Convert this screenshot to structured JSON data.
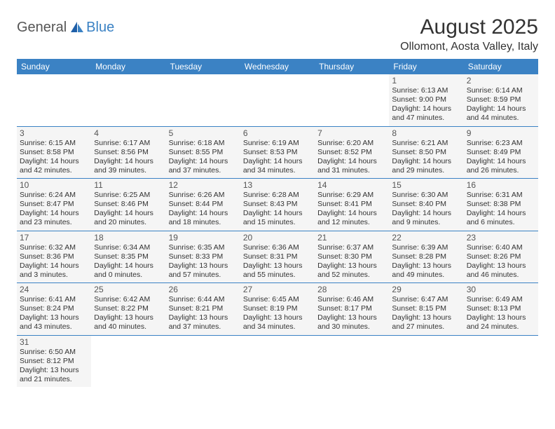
{
  "logo": {
    "text_general": "General",
    "text_blue": "Blue"
  },
  "title": {
    "month": "August 2025",
    "location": "Ollomont, Aosta Valley, Italy"
  },
  "colors": {
    "header_bg": "#3b82c4",
    "header_text": "#ffffff",
    "cell_bg": "#f5f5f5",
    "border": "#3b82c4",
    "text": "#333333"
  },
  "weekdays": [
    "Sunday",
    "Monday",
    "Tuesday",
    "Wednesday",
    "Thursday",
    "Friday",
    "Saturday"
  ],
  "weeks": [
    [
      null,
      null,
      null,
      null,
      null,
      {
        "day": "1",
        "sunrise": "Sunrise: 6:13 AM",
        "sunset": "Sunset: 9:00 PM",
        "daylight1": "Daylight: 14 hours",
        "daylight2": "and 47 minutes."
      },
      {
        "day": "2",
        "sunrise": "Sunrise: 6:14 AM",
        "sunset": "Sunset: 8:59 PM",
        "daylight1": "Daylight: 14 hours",
        "daylight2": "and 44 minutes."
      }
    ],
    [
      {
        "day": "3",
        "sunrise": "Sunrise: 6:15 AM",
        "sunset": "Sunset: 8:58 PM",
        "daylight1": "Daylight: 14 hours",
        "daylight2": "and 42 minutes."
      },
      {
        "day": "4",
        "sunrise": "Sunrise: 6:17 AM",
        "sunset": "Sunset: 8:56 PM",
        "daylight1": "Daylight: 14 hours",
        "daylight2": "and 39 minutes."
      },
      {
        "day": "5",
        "sunrise": "Sunrise: 6:18 AM",
        "sunset": "Sunset: 8:55 PM",
        "daylight1": "Daylight: 14 hours",
        "daylight2": "and 37 minutes."
      },
      {
        "day": "6",
        "sunrise": "Sunrise: 6:19 AM",
        "sunset": "Sunset: 8:53 PM",
        "daylight1": "Daylight: 14 hours",
        "daylight2": "and 34 minutes."
      },
      {
        "day": "7",
        "sunrise": "Sunrise: 6:20 AM",
        "sunset": "Sunset: 8:52 PM",
        "daylight1": "Daylight: 14 hours",
        "daylight2": "and 31 minutes."
      },
      {
        "day": "8",
        "sunrise": "Sunrise: 6:21 AM",
        "sunset": "Sunset: 8:50 PM",
        "daylight1": "Daylight: 14 hours",
        "daylight2": "and 29 minutes."
      },
      {
        "day": "9",
        "sunrise": "Sunrise: 6:23 AM",
        "sunset": "Sunset: 8:49 PM",
        "daylight1": "Daylight: 14 hours",
        "daylight2": "and 26 minutes."
      }
    ],
    [
      {
        "day": "10",
        "sunrise": "Sunrise: 6:24 AM",
        "sunset": "Sunset: 8:47 PM",
        "daylight1": "Daylight: 14 hours",
        "daylight2": "and 23 minutes."
      },
      {
        "day": "11",
        "sunrise": "Sunrise: 6:25 AM",
        "sunset": "Sunset: 8:46 PM",
        "daylight1": "Daylight: 14 hours",
        "daylight2": "and 20 minutes."
      },
      {
        "day": "12",
        "sunrise": "Sunrise: 6:26 AM",
        "sunset": "Sunset: 8:44 PM",
        "daylight1": "Daylight: 14 hours",
        "daylight2": "and 18 minutes."
      },
      {
        "day": "13",
        "sunrise": "Sunrise: 6:28 AM",
        "sunset": "Sunset: 8:43 PM",
        "daylight1": "Daylight: 14 hours",
        "daylight2": "and 15 minutes."
      },
      {
        "day": "14",
        "sunrise": "Sunrise: 6:29 AM",
        "sunset": "Sunset: 8:41 PM",
        "daylight1": "Daylight: 14 hours",
        "daylight2": "and 12 minutes."
      },
      {
        "day": "15",
        "sunrise": "Sunrise: 6:30 AM",
        "sunset": "Sunset: 8:40 PM",
        "daylight1": "Daylight: 14 hours",
        "daylight2": "and 9 minutes."
      },
      {
        "day": "16",
        "sunrise": "Sunrise: 6:31 AM",
        "sunset": "Sunset: 8:38 PM",
        "daylight1": "Daylight: 14 hours",
        "daylight2": "and 6 minutes."
      }
    ],
    [
      {
        "day": "17",
        "sunrise": "Sunrise: 6:32 AM",
        "sunset": "Sunset: 8:36 PM",
        "daylight1": "Daylight: 14 hours",
        "daylight2": "and 3 minutes."
      },
      {
        "day": "18",
        "sunrise": "Sunrise: 6:34 AM",
        "sunset": "Sunset: 8:35 PM",
        "daylight1": "Daylight: 14 hours",
        "daylight2": "and 0 minutes."
      },
      {
        "day": "19",
        "sunrise": "Sunrise: 6:35 AM",
        "sunset": "Sunset: 8:33 PM",
        "daylight1": "Daylight: 13 hours",
        "daylight2": "and 57 minutes."
      },
      {
        "day": "20",
        "sunrise": "Sunrise: 6:36 AM",
        "sunset": "Sunset: 8:31 PM",
        "daylight1": "Daylight: 13 hours",
        "daylight2": "and 55 minutes."
      },
      {
        "day": "21",
        "sunrise": "Sunrise: 6:37 AM",
        "sunset": "Sunset: 8:30 PM",
        "daylight1": "Daylight: 13 hours",
        "daylight2": "and 52 minutes."
      },
      {
        "day": "22",
        "sunrise": "Sunrise: 6:39 AM",
        "sunset": "Sunset: 8:28 PM",
        "daylight1": "Daylight: 13 hours",
        "daylight2": "and 49 minutes."
      },
      {
        "day": "23",
        "sunrise": "Sunrise: 6:40 AM",
        "sunset": "Sunset: 8:26 PM",
        "daylight1": "Daylight: 13 hours",
        "daylight2": "and 46 minutes."
      }
    ],
    [
      {
        "day": "24",
        "sunrise": "Sunrise: 6:41 AM",
        "sunset": "Sunset: 8:24 PM",
        "daylight1": "Daylight: 13 hours",
        "daylight2": "and 43 minutes."
      },
      {
        "day": "25",
        "sunrise": "Sunrise: 6:42 AM",
        "sunset": "Sunset: 8:22 PM",
        "daylight1": "Daylight: 13 hours",
        "daylight2": "and 40 minutes."
      },
      {
        "day": "26",
        "sunrise": "Sunrise: 6:44 AM",
        "sunset": "Sunset: 8:21 PM",
        "daylight1": "Daylight: 13 hours",
        "daylight2": "and 37 minutes."
      },
      {
        "day": "27",
        "sunrise": "Sunrise: 6:45 AM",
        "sunset": "Sunset: 8:19 PM",
        "daylight1": "Daylight: 13 hours",
        "daylight2": "and 34 minutes."
      },
      {
        "day": "28",
        "sunrise": "Sunrise: 6:46 AM",
        "sunset": "Sunset: 8:17 PM",
        "daylight1": "Daylight: 13 hours",
        "daylight2": "and 30 minutes."
      },
      {
        "day": "29",
        "sunrise": "Sunrise: 6:47 AM",
        "sunset": "Sunset: 8:15 PM",
        "daylight1": "Daylight: 13 hours",
        "daylight2": "and 27 minutes."
      },
      {
        "day": "30",
        "sunrise": "Sunrise: 6:49 AM",
        "sunset": "Sunset: 8:13 PM",
        "daylight1": "Daylight: 13 hours",
        "daylight2": "and 24 minutes."
      }
    ],
    [
      {
        "day": "31",
        "sunrise": "Sunrise: 6:50 AM",
        "sunset": "Sunset: 8:12 PM",
        "daylight1": "Daylight: 13 hours",
        "daylight2": "and 21 minutes."
      },
      null,
      null,
      null,
      null,
      null,
      null
    ]
  ]
}
